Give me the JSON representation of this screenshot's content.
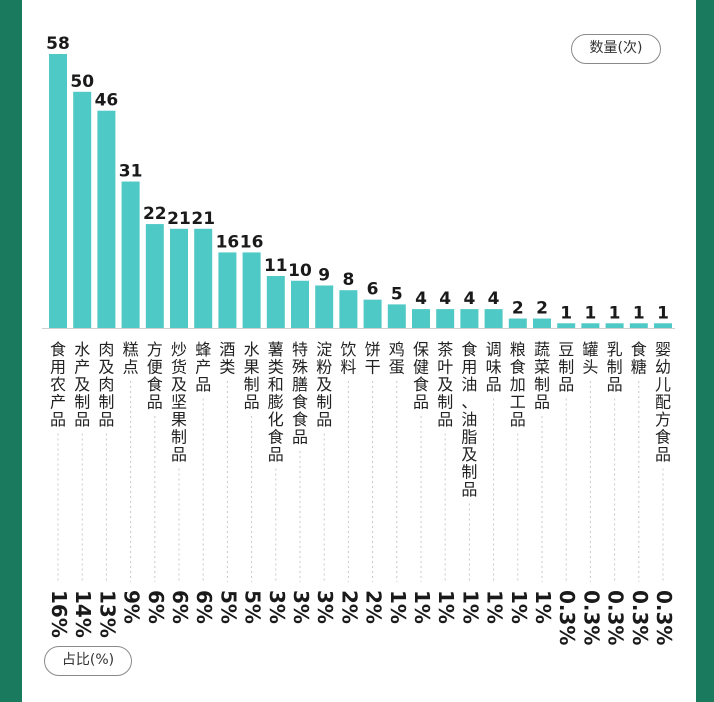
{
  "legend": {
    "count_label": "数量(次)",
    "share_label": "占比(%)"
  },
  "colors": {
    "bar": "#4ec9c6",
    "background": "#1a7a5e",
    "text": "#1a1a1a"
  },
  "chart_data": {
    "type": "bar",
    "categories": [
      "食用农产品",
      "水产及制品",
      "肉及肉制品",
      "糕点",
      "方便食品",
      "炒货及坚果制品",
      "蜂产品",
      "酒类",
      "水果制品",
      "薯类和膨化食品",
      "特殊膳食食品",
      "淀粉及制品",
      "饮料",
      "饼干",
      "鸡蛋",
      "保健食品",
      "茶叶及制品",
      "食用油、油脂及制品",
      "调味品",
      "粮食加工品",
      "蔬菜制品",
      "豆制品",
      "罐头",
      "乳制品",
      "食糖",
      "婴幼儿配方食品"
    ],
    "values": [
      58,
      50,
      46,
      31,
      22,
      21,
      21,
      16,
      16,
      11,
      10,
      9,
      8,
      6,
      5,
      4,
      4,
      4,
      4,
      2,
      2,
      1,
      1,
      1,
      1,
      1
    ],
    "percent_labels": [
      "16%",
      "14%",
      "13%",
      "9%",
      "6%",
      "6%",
      "6%",
      "5%",
      "5%",
      "3%",
      "3%",
      "3%",
      "2%",
      "2%",
      "1%",
      "1%",
      "1%",
      "1%",
      "1%",
      "1%",
      "1%",
      "0.3%",
      "0.3%",
      "0.3%",
      "0.3%",
      "0.3%"
    ],
    "ylim": [
      0,
      58
    ]
  }
}
